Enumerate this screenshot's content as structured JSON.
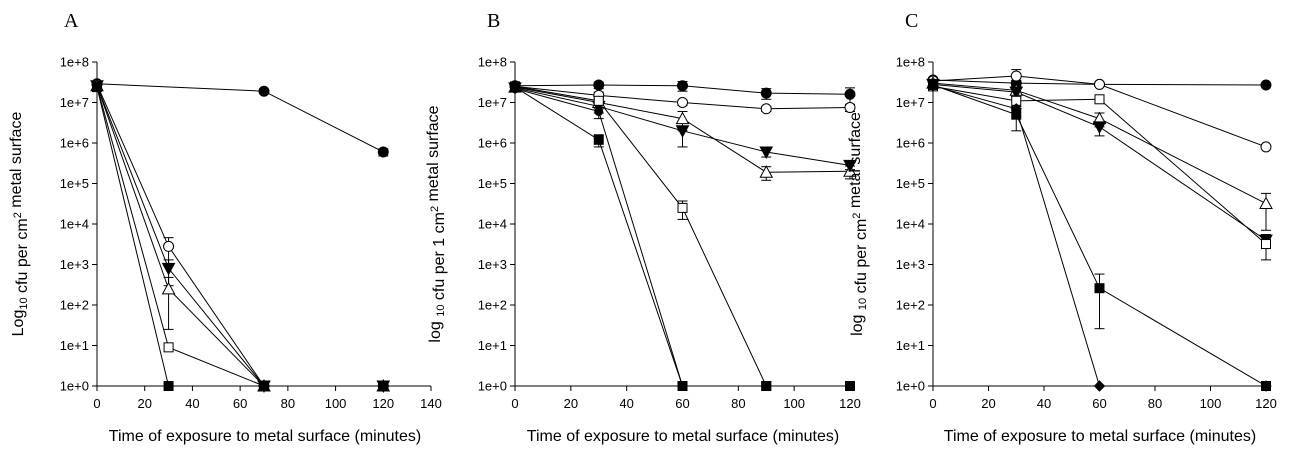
{
  "chart_data": [
    {
      "type": "line",
      "panel_label": "A",
      "xlabel": "Time of exposure to metal surface (minutes)",
      "ylabel": "Log10 cfu per cm2 metal surface",
      "ylabel_parts": {
        "pre": "Log",
        "sub1": "10",
        "mid": " cfu per cm",
        "sup": "2",
        "post": " metal surface"
      },
      "xlim": [
        0,
        140
      ],
      "xticks": [
        0,
        20,
        40,
        60,
        80,
        100,
        120,
        140
      ],
      "ylim_log10": [
        0,
        8
      ],
      "yscale": "log",
      "yticks": [
        "1e+0",
        "1e+1",
        "1e+2",
        "1e+3",
        "1e+4",
        "1e+5",
        "1e+6",
        "1e+7",
        "1e+8"
      ],
      "series": [
        {
          "marker": "filled-circle",
          "x": [
            0,
            70,
            120
          ],
          "y": [
            29000000,
            19000000,
            600000
          ],
          "err": [
            null,
            2500000,
            120000
          ]
        },
        {
          "marker": "open-circle",
          "x": [
            0,
            30,
            70,
            120
          ],
          "y": [
            28000000,
            2800,
            1,
            1
          ],
          "err": [
            null,
            1800,
            null,
            null
          ]
        },
        {
          "marker": "filled-triangle-down",
          "x": [
            0,
            30,
            70,
            120
          ],
          "y": [
            26000000,
            800,
            1,
            1
          ],
          "err": [
            null,
            500,
            null,
            null
          ]
        },
        {
          "marker": "open-triangle-up",
          "x": [
            0,
            30,
            70,
            120
          ],
          "y": [
            26000000,
            250,
            1,
            1
          ],
          "err": [
            null,
            230,
            null,
            null
          ]
        },
        {
          "marker": "open-square",
          "x": [
            0,
            30,
            70,
            120
          ],
          "y": [
            25000000,
            9,
            1,
            1
          ],
          "err": [
            null,
            null,
            null,
            null
          ]
        },
        {
          "marker": "filled-square",
          "x": [
            0,
            30,
            70,
            120
          ],
          "y": [
            24000000,
            1,
            1,
            1
          ],
          "err": [
            null,
            null,
            null,
            null
          ]
        }
      ]
    },
    {
      "type": "line",
      "panel_label": "B",
      "xlabel": "Time of exposure to metal surface (minutes)",
      "ylabel": "log 10 cfu per 1 cm2 metal surface",
      "ylabel_parts": {
        "pre": "log ",
        "sub1": "10",
        "mid": " cfu per 1 cm",
        "sup": "2",
        "post": " metal surface"
      },
      "xlim": [
        0,
        120
      ],
      "xticks": [
        0,
        20,
        40,
        60,
        80,
        100,
        120
      ],
      "ylim_log10": [
        0,
        8
      ],
      "yscale": "log",
      "yticks": [
        "1e+0",
        "1e+1",
        "1e+2",
        "1e+3",
        "1e+4",
        "1e+5",
        "1e+6",
        "1e+7",
        "1e+8"
      ],
      "series": [
        {
          "marker": "filled-circle",
          "x": [
            0,
            30,
            60,
            90,
            120
          ],
          "y": [
            26000000,
            27000000,
            26000000,
            17000000,
            16000000
          ],
          "err": [
            null,
            5000000,
            7000000,
            5000000,
            7000000
          ]
        },
        {
          "marker": "open-circle",
          "x": [
            0,
            30,
            60,
            90,
            120
          ],
          "y": [
            25000000,
            15000000,
            10000000,
            7000000,
            7500000
          ],
          "err": [
            null,
            3000000,
            1500000,
            1000000,
            1500000
          ]
        },
        {
          "marker": "open-triangle-up",
          "x": [
            0,
            30,
            60,
            90,
            120
          ],
          "y": [
            24000000,
            10000000,
            4000000,
            190000,
            200000
          ],
          "err": [
            null,
            3000000,
            2000000,
            70000,
            70000
          ]
        },
        {
          "marker": "filled-triangle-down",
          "x": [
            0,
            30,
            60,
            90,
            120
          ],
          "y": [
            23000000,
            8000000,
            2000000,
            600000,
            280000
          ],
          "err": [
            null,
            2500000,
            1200000,
            150000,
            60000
          ]
        },
        {
          "marker": "filled-circle-small",
          "x": [
            0,
            30,
            60,
            90,
            120
          ],
          "y": [
            22000000,
            6000000,
            1,
            1,
            1
          ],
          "err": [
            null,
            2000000,
            null,
            null,
            null
          ]
        },
        {
          "marker": "open-square",
          "x": [
            0,
            30,
            60,
            90,
            120
          ],
          "y": [
            25000000,
            11000000,
            25000,
            1,
            1
          ],
          "err": [
            null,
            3000000,
            12000,
            null,
            null
          ]
        },
        {
          "marker": "filled-square",
          "x": [
            0,
            30,
            60,
            90,
            120
          ],
          "y": [
            24000000,
            1200000,
            1,
            1,
            1
          ],
          "err": [
            null,
            400000,
            null,
            null,
            null
          ]
        }
      ]
    },
    {
      "type": "line",
      "panel_label": "C",
      "xlabel": "Time of exposure to metal surface (minutes)",
      "ylabel": "log 10 cfu per cm2 metal surface",
      "ylabel_parts": {
        "pre": "log ",
        "sub1": "10",
        "mid": " cfu per cm",
        "sup": "2",
        "post": " metal surface"
      },
      "xlim": [
        0,
        120
      ],
      "xticks": [
        0,
        20,
        40,
        60,
        80,
        100,
        120
      ],
      "ylim_log10": [
        0,
        8
      ],
      "yscale": "log",
      "yticks": [
        "1e+0",
        "1e+1",
        "1e+2",
        "1e+3",
        "1e+4",
        "1e+5",
        "1e+6",
        "1e+7",
        "1e+8"
      ],
      "series": [
        {
          "marker": "filled-circle",
          "x": [
            0,
            30,
            60,
            120
          ],
          "y": [
            36000000,
            30000000,
            28000000,
            27000000
          ],
          "err": [
            null,
            5000000,
            null,
            null
          ]
        },
        {
          "marker": "open-circle",
          "x": [
            0,
            30,
            60,
            120
          ],
          "y": [
            34000000,
            45000000,
            28000000,
            800000
          ],
          "err": [
            null,
            20000000,
            null,
            null
          ]
        },
        {
          "marker": "open-triangle-up",
          "x": [
            0,
            30,
            60,
            120
          ],
          "y": [
            30000000,
            20000000,
            4000000,
            32000
          ],
          "err": [
            null,
            6000000,
            1500000,
            25000
          ]
        },
        {
          "marker": "filled-triangle-down",
          "x": [
            0,
            30,
            60,
            120
          ],
          "y": [
            28000000,
            18000000,
            2500000,
            4000
          ],
          "err": [
            null,
            5000000,
            1000000,
            1500
          ]
        },
        {
          "marker": "open-square",
          "x": [
            0,
            30,
            60,
            120
          ],
          "y": [
            25000000,
            11000000,
            12000000,
            3200
          ],
          "err": [
            null,
            3000000,
            null,
            1900
          ]
        },
        {
          "marker": "filled-square",
          "x": [
            0,
            30,
            60,
            120
          ],
          "y": [
            27000000,
            5000000,
            260,
            1
          ],
          "err": [
            null,
            3000000,
            320,
            null
          ]
        },
        {
          "marker": "filled-diamond",
          "x": [
            0,
            30,
            60,
            120
          ],
          "y": [
            26000000,
            7000000,
            1,
            1
          ],
          "err": [
            null,
            null,
            null,
            null
          ]
        }
      ]
    }
  ]
}
